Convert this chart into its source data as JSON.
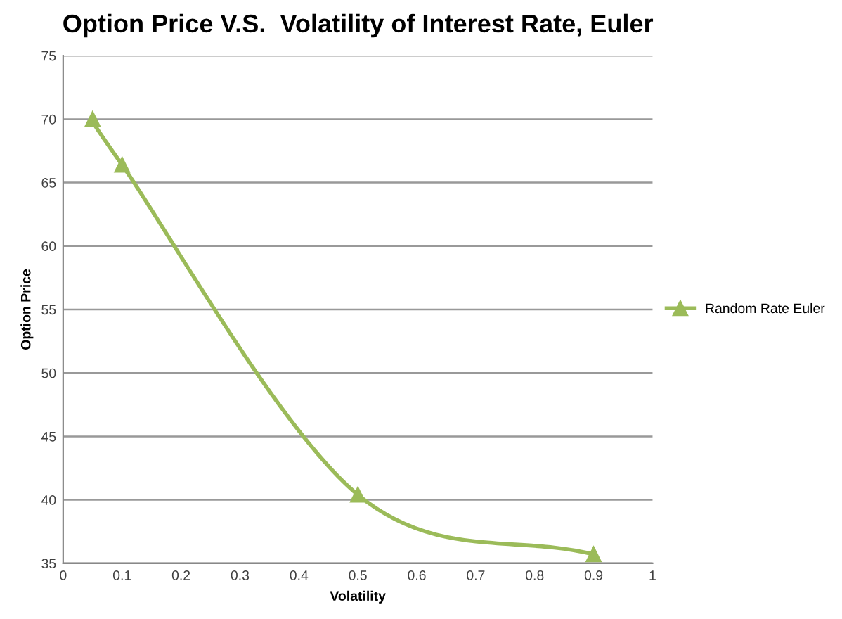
{
  "chart_data": {
    "type": "line",
    "title": "Option Price V.S.  Volatility of Interest Rate, Euler",
    "xlabel": "Volatility",
    "ylabel": "Option Price",
    "x": [
      0.05,
      0.1,
      0.5,
      0.9
    ],
    "series": [
      {
        "name": "Random Rate Euler",
        "color": "#9bbb59",
        "values": [
          70,
          66.4,
          40.4,
          35.7
        ]
      }
    ],
    "xlim": [
      0,
      1
    ],
    "xticks": [
      0,
      0.1,
      0.2,
      0.3,
      0.4,
      0.5,
      0.6,
      0.7,
      0.8,
      0.9,
      1
    ],
    "ylim": [
      35,
      75
    ],
    "yticks": [
      35,
      40,
      45,
      50,
      55,
      60,
      65,
      70,
      75
    ],
    "grid": "y",
    "legend": "right",
    "marker": "triangle",
    "line_style": "solid"
  }
}
